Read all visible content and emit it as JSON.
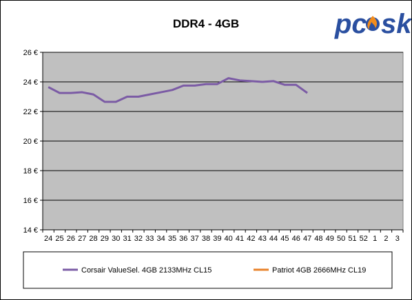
{
  "chart_data": {
    "type": "line",
    "title": "DDR4 - 4GB",
    "xlabel": "",
    "ylabel": "",
    "categories": [
      "24",
      "25",
      "26",
      "27",
      "28",
      "29",
      "30",
      "31",
      "32",
      "33",
      "34",
      "35",
      "36",
      "37",
      "38",
      "39",
      "40",
      "41",
      "42",
      "43",
      "44",
      "45",
      "46",
      "47",
      "48",
      "49",
      "50",
      "51",
      "52",
      "1",
      "2",
      "3"
    ],
    "ylim": [
      14,
      26
    ],
    "yticks": [
      14,
      16,
      18,
      20,
      22,
      24,
      26
    ],
    "ytick_labels": [
      "14 €",
      "16 €",
      "18 €",
      "20 €",
      "22 €",
      "24 €",
      "26 €"
    ],
    "grid": true,
    "legend_position": "bottom",
    "series": [
      {
        "name": "Corsair ValueSel. 4GB 2133MHz CL15",
        "color": "#7b5ba5",
        "values": [
          23.65,
          23.25,
          23.25,
          23.3,
          23.15,
          22.65,
          22.65,
          23.0,
          23.0,
          23.15,
          23.3,
          23.45,
          23.75,
          23.75,
          23.85,
          23.85,
          24.25,
          24.1,
          24.05,
          24.0,
          24.05,
          23.8,
          23.8,
          23.25,
          null,
          null,
          null,
          null,
          null,
          null,
          null,
          null
        ]
      },
      {
        "name": "Patriot 4GB 2666MHz CL19",
        "color": "#e8822a",
        "values": [
          null,
          null,
          null,
          null,
          null,
          null,
          null,
          null,
          null,
          null,
          null,
          null,
          null,
          null,
          null,
          null,
          null,
          null,
          null,
          null,
          null,
          null,
          null,
          null,
          null,
          null,
          null,
          null,
          null,
          null,
          null,
          null
        ]
      }
    ]
  },
  "logo": {
    "text": "pcask",
    "color": "#2a4fa0",
    "flame_color": "#f28c1c"
  }
}
